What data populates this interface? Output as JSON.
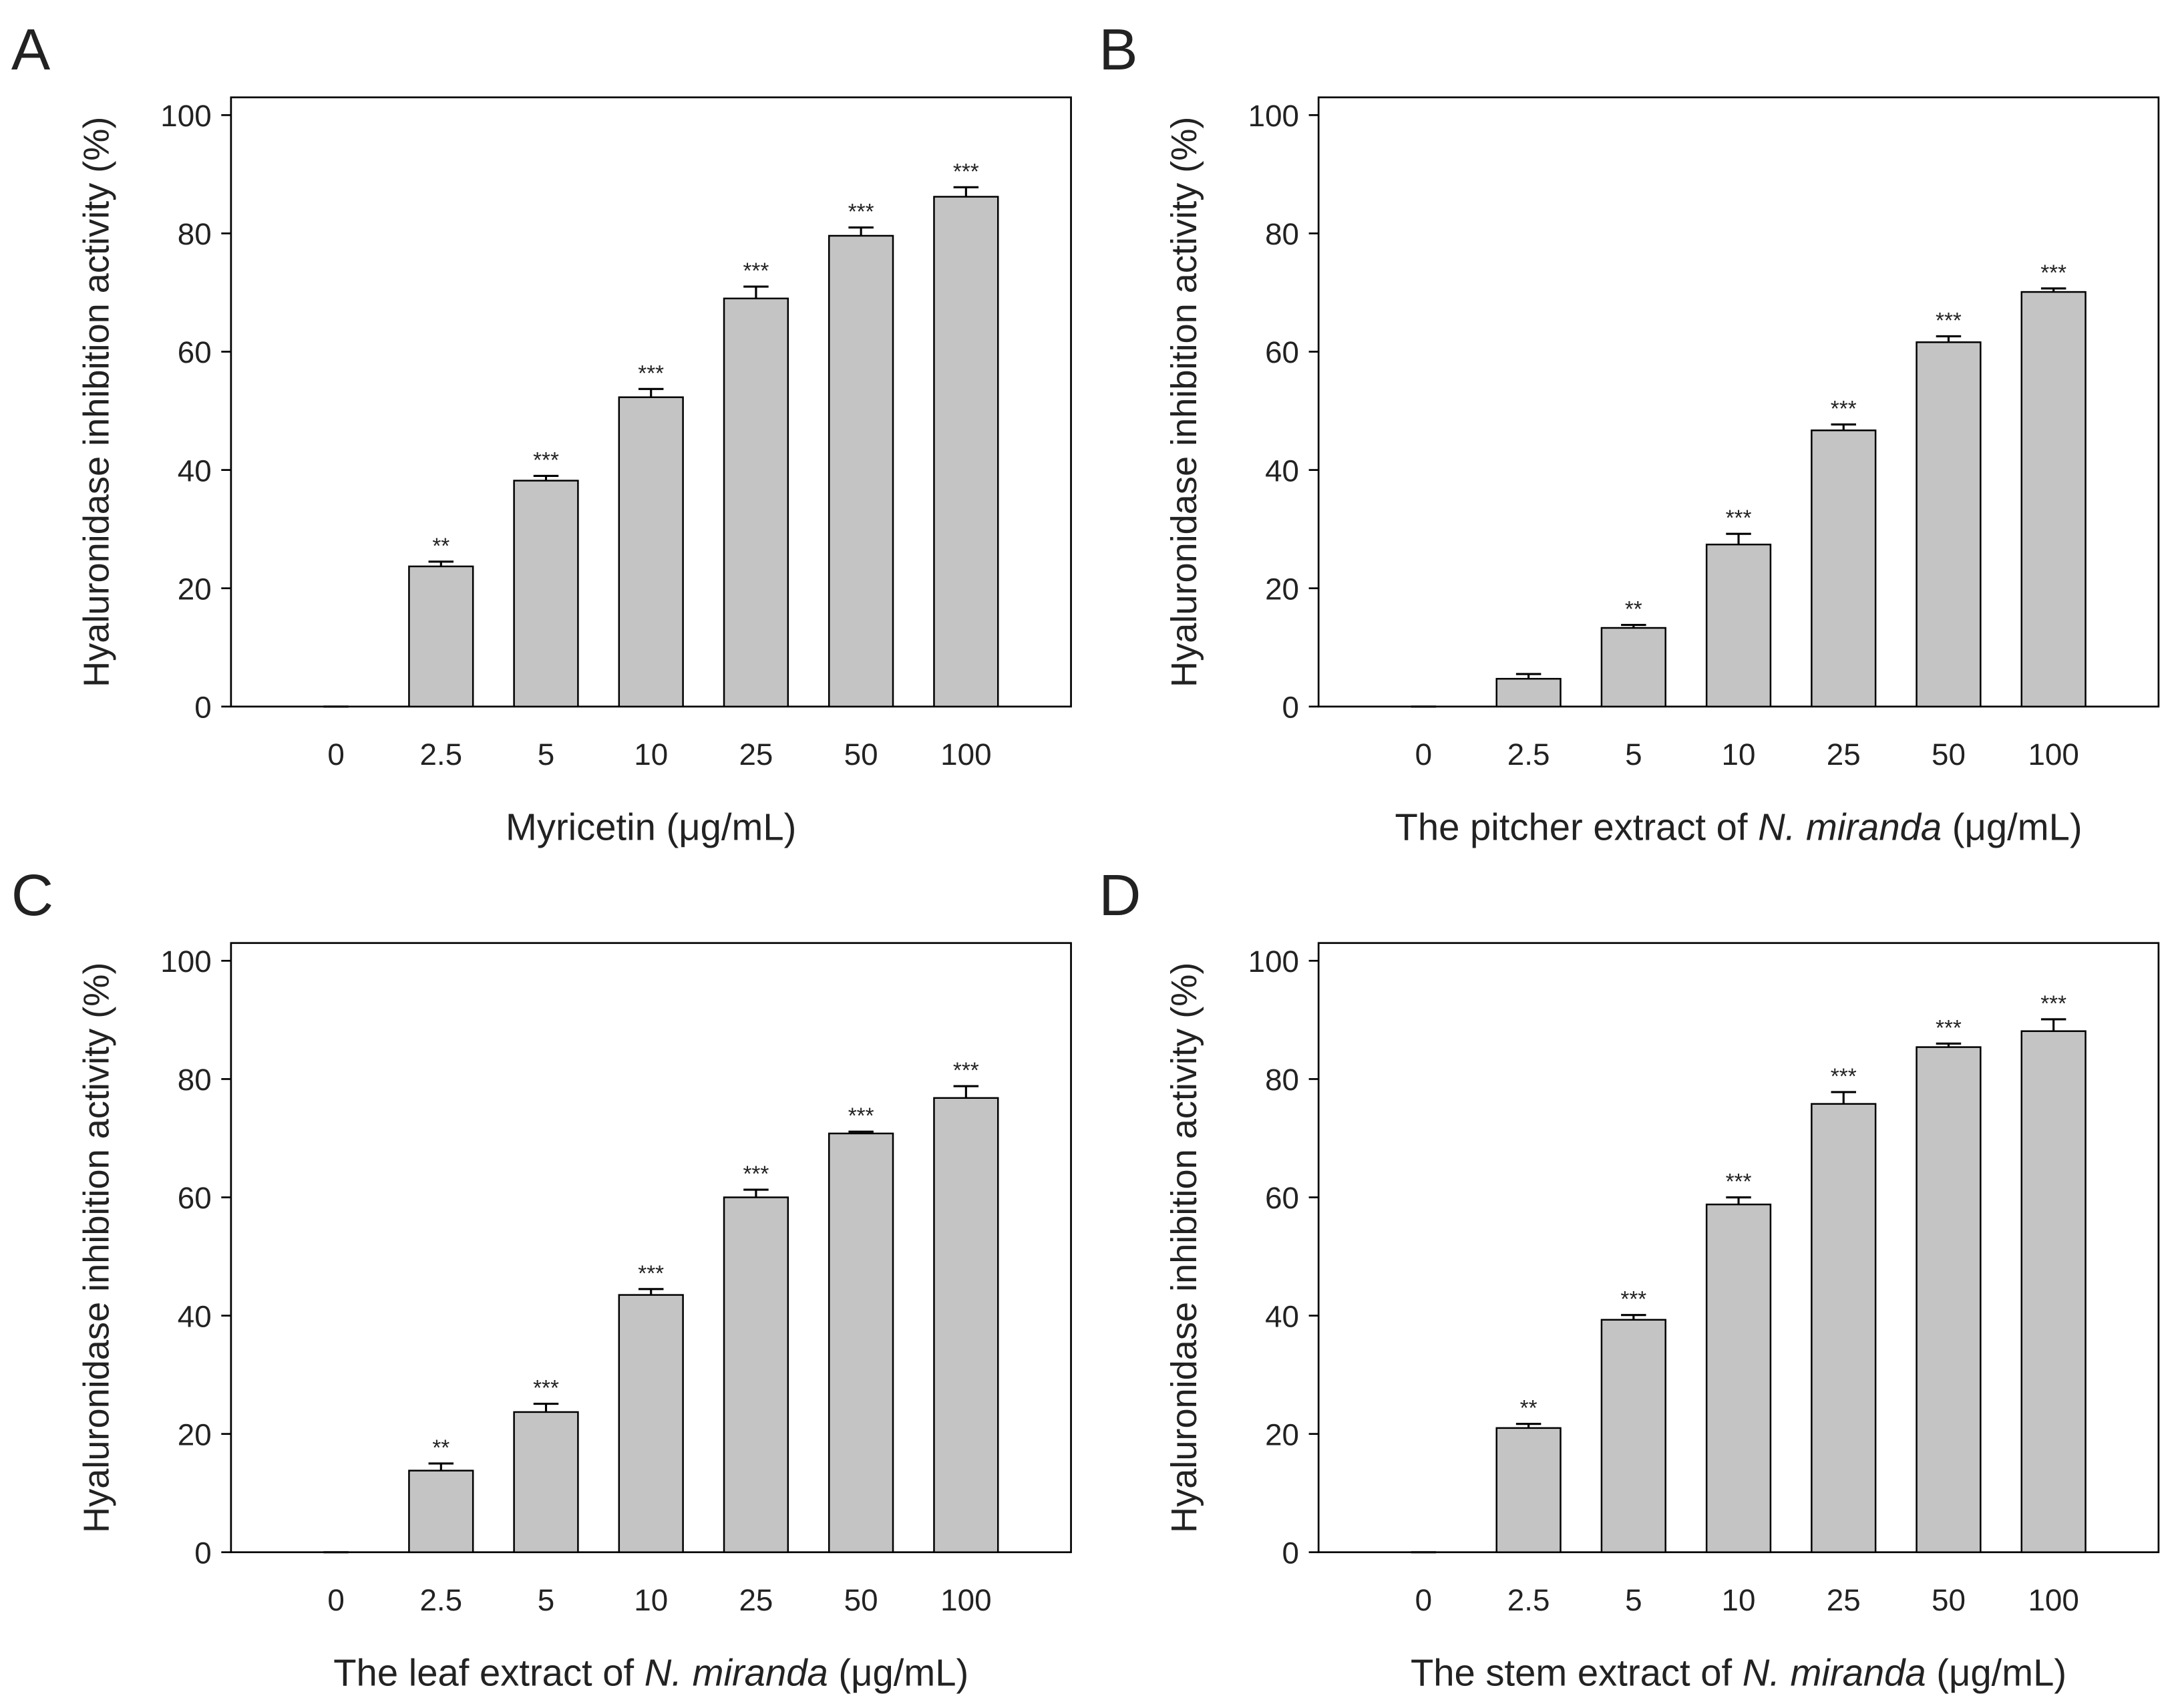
{
  "chart_data": [
    {
      "type": "bar",
      "panel": "A",
      "y_label": "Hyaluronidase inhibition activity (%)",
      "x_label": [
        {
          "text": "Myricetin ("
        },
        {
          "text": "μg/mL)"
        }
      ],
      "categories": [
        "0",
        "2.5",
        "5",
        "10",
        "25",
        "50",
        "100"
      ],
      "values": [
        0,
        23.7,
        38.2,
        52.3,
        69.0,
        79.6,
        86.2
      ],
      "errors": [
        0,
        0.8,
        0.8,
        1.4,
        2.0,
        1.4,
        1.6
      ],
      "value_labels": [
        null,
        "**",
        "***",
        "***",
        "***",
        "***",
        "***"
      ],
      "color": "#c4c4c4",
      "ylim": [
        0,
        103
      ],
      "yticks": [
        0,
        20,
        40,
        60,
        80,
        100
      ]
    },
    {
      "type": "bar",
      "panel": "B",
      "y_label": "Hyaluronidase inhibition activity (%)",
      "x_label": [
        {
          "text": "The pitcher extract of "
        },
        {
          "text": "N. miranda",
          "italic": true
        },
        {
          "text": " (μg/mL)"
        }
      ],
      "categories": [
        "0",
        "2.5",
        "5",
        "10",
        "25",
        "50",
        "100"
      ],
      "values": [
        0,
        4.7,
        13.3,
        27.4,
        46.7,
        61.6,
        70.1
      ],
      "errors": [
        0,
        0.8,
        0.5,
        1.8,
        1.0,
        1.0,
        0.6
      ],
      "value_labels": [
        null,
        null,
        "**",
        "***",
        "***",
        "***",
        "***"
      ],
      "color": "#c4c4c4",
      "ylim": [
        0,
        103
      ],
      "yticks": [
        0,
        20,
        40,
        60,
        80,
        100
      ]
    },
    {
      "type": "bar",
      "panel": "C",
      "y_label": "Hyaluronidase inhibition activity (%)",
      "x_label": [
        {
          "text": "The leaf extract of "
        },
        {
          "text": "N. miranda",
          "italic": true
        },
        {
          "text": " (μg/mL)"
        }
      ],
      "categories": [
        "0",
        "2.5",
        "5",
        "10",
        "25",
        "50",
        "100"
      ],
      "values": [
        0,
        13.8,
        23.7,
        43.5,
        60.0,
        70.8,
        76.8
      ],
      "errors": [
        0,
        1.2,
        1.4,
        1.0,
        1.3,
        0.3,
        2.0
      ],
      "value_labels": [
        null,
        "**",
        "***",
        "***",
        "***",
        "***",
        "***"
      ],
      "color": "#c4c4c4",
      "ylim": [
        0,
        103
      ],
      "yticks": [
        0,
        20,
        40,
        60,
        80,
        100
      ]
    },
    {
      "type": "bar",
      "panel": "D",
      "y_label": "Hyaluronidase inhibition activity (%)",
      "x_label": [
        {
          "text": "The stem extract of "
        },
        {
          "text": "N. miranda",
          "italic": true
        },
        {
          "text": " (μg/mL)"
        }
      ],
      "categories": [
        "0",
        "2.5",
        "5",
        "10",
        "25",
        "50",
        "100"
      ],
      "values": [
        0,
        21.0,
        39.3,
        58.8,
        75.8,
        85.4,
        88.1
      ],
      "errors": [
        0,
        0.7,
        0.8,
        1.2,
        2.0,
        0.6,
        2.0
      ],
      "value_labels": [
        null,
        "**",
        "***",
        "***",
        "***",
        "***",
        "***"
      ],
      "color": "#c4c4c4",
      "ylim": [
        0,
        103
      ],
      "yticks": [
        0,
        20,
        40,
        60,
        80,
        100
      ]
    }
  ]
}
